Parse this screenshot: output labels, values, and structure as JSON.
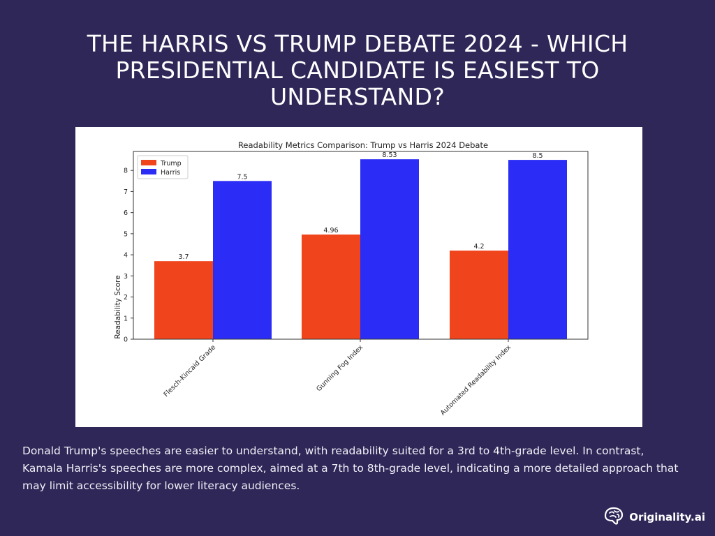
{
  "page": {
    "title": "THE HARRIS VS TRUMP DEBATE 2024 - WHICH PRESIDENTIAL CANDIDATE IS EASIEST TO UNDERSTAND?",
    "description": "Donald Trump's speeches are easier to understand, with readability suited for a 3rd to 4th-grade level. In contrast, Kamala Harris's speeches are more complex, aimed at a 7th to 8th-grade level, indicating a more detailed approach that may limit accessibility for lower literacy audiences."
  },
  "brand": {
    "name": "Originality.ai",
    "logo_icon": "brain-icon"
  },
  "chart_data": {
    "type": "bar",
    "title": "Readability Metrics Comparison: Trump vs Harris 2024 Debate",
    "xlabel": "",
    "ylabel": "Readability Score",
    "ylim": [
      0,
      8.9
    ],
    "yticks": [
      0,
      1,
      2,
      3,
      4,
      5,
      6,
      7,
      8
    ],
    "categories": [
      "Flesch-Kincaid Grade",
      "Gunning Fog Index",
      "Automated Readability Index"
    ],
    "series": [
      {
        "name": "Trump",
        "color": "#f0441c",
        "values": [
          3.7,
          4.96,
          4.2
        ],
        "labels": [
          "3.7",
          "4.96",
          "4.2"
        ]
      },
      {
        "name": "Harris",
        "color": "#2b2cf5",
        "values": [
          7.5,
          8.53,
          8.5
        ],
        "labels": [
          "7.5",
          "8.53",
          "8.5"
        ]
      }
    ],
    "legend_position": "top-left",
    "grid": false
  }
}
